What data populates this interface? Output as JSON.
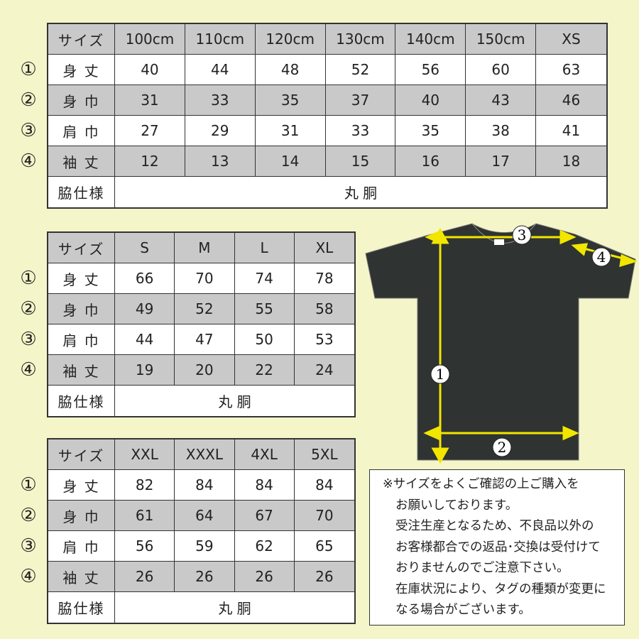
{
  "colors": {
    "background": "#f4f5c9",
    "header_gray": "#c9c9c9",
    "shirt": "#2f3331",
    "arrow": "#f2e600"
  },
  "row_markers": [
    "①",
    "②",
    "③",
    "④"
  ],
  "tables": [
    {
      "header": [
        "サイズ",
        "100cm",
        "110cm",
        "120cm",
        "130cm",
        "140cm",
        "150cm",
        "XS"
      ],
      "rows": [
        {
          "label": "身 丈",
          "values": [
            "40",
            "44",
            "48",
            "52",
            "56",
            "60",
            "63"
          ]
        },
        {
          "label": "身 巾",
          "values": [
            "31",
            "33",
            "35",
            "37",
            "40",
            "43",
            "46"
          ]
        },
        {
          "label": "肩 巾",
          "values": [
            "27",
            "29",
            "31",
            "33",
            "35",
            "38",
            "41"
          ]
        },
        {
          "label": "袖 丈",
          "values": [
            "12",
            "13",
            "14",
            "15",
            "16",
            "17",
            "18"
          ]
        }
      ],
      "side_label": "脇仕様",
      "side_value": "丸 胴"
    },
    {
      "header": [
        "サイズ",
        "S",
        "M",
        "L",
        "XL"
      ],
      "rows": [
        {
          "label": "身 丈",
          "values": [
            "66",
            "70",
            "74",
            "78"
          ]
        },
        {
          "label": "身 巾",
          "values": [
            "49",
            "52",
            "55",
            "58"
          ]
        },
        {
          "label": "肩 巾",
          "values": [
            "44",
            "47",
            "50",
            "53"
          ]
        },
        {
          "label": "袖 丈",
          "values": [
            "19",
            "20",
            "22",
            "24"
          ]
        }
      ],
      "side_label": "脇仕様",
      "side_value": "丸 胴"
    },
    {
      "header": [
        "サイズ",
        "XXL",
        "XXXL",
        "4XL",
        "5XL"
      ],
      "rows": [
        {
          "label": "身 丈",
          "values": [
            "82",
            "84",
            "84",
            "84"
          ]
        },
        {
          "label": "身 巾",
          "values": [
            "61",
            "64",
            "67",
            "70"
          ]
        },
        {
          "label": "肩 巾",
          "values": [
            "56",
            "59",
            "62",
            "65"
          ]
        },
        {
          "label": "袖 丈",
          "values": [
            "26",
            "26",
            "26",
            "26"
          ]
        }
      ],
      "side_label": "脇仕様",
      "side_value": "丸 胴"
    }
  ],
  "diagram": {
    "markers": [
      "1",
      "2",
      "3",
      "4"
    ]
  },
  "note": {
    "lines": [
      "※サイズをよくご確認の上ご購入を",
      "お願いしております。",
      "受注生産となるため、不良品以外の",
      "お客様都合での返品･交換は受付けて",
      "おりませんのでご注意下さい。",
      "在庫状況により、タグの種類が変更に",
      "なる場合がございます。"
    ]
  }
}
